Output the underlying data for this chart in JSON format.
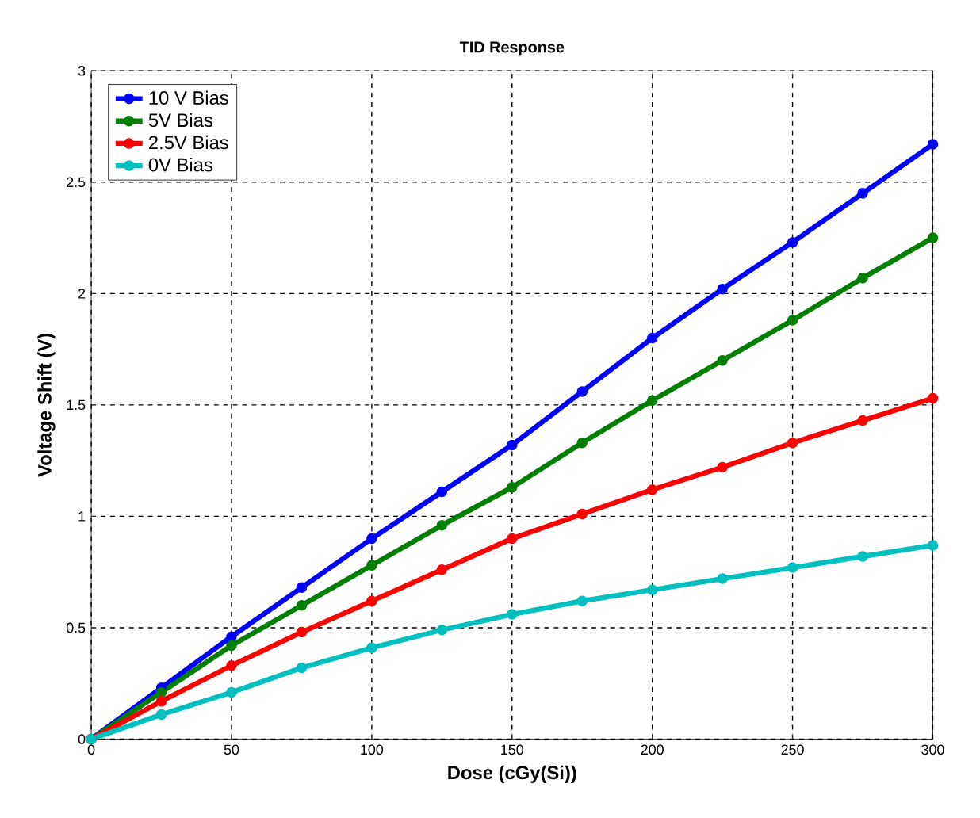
{
  "chart_data": {
    "type": "line",
    "title": "TID Response",
    "xlabel": "Dose (cGy(Si))",
    "ylabel": "Voltage Shift (V)",
    "x": [
      0,
      25,
      50,
      75,
      100,
      125,
      150,
      175,
      200,
      225,
      250,
      275,
      300
    ],
    "series": [
      {
        "name": "10 V Bias",
        "color": "#0000ff",
        "values": [
          0,
          0.23,
          0.46,
          0.68,
          0.9,
          1.11,
          1.32,
          1.56,
          1.8,
          2.02,
          2.23,
          2.45,
          2.67
        ]
      },
      {
        "name": "5V Bias",
        "color": "#007f00",
        "values": [
          0,
          0.21,
          0.42,
          0.6,
          0.78,
          0.96,
          1.13,
          1.33,
          1.52,
          1.7,
          1.88,
          2.07,
          2.25
        ]
      },
      {
        "name": "2.5V Bias",
        "color": "#ff0000",
        "values": [
          0,
          0.17,
          0.33,
          0.48,
          0.62,
          0.76,
          0.9,
          1.01,
          1.12,
          1.22,
          1.33,
          1.43,
          1.53
        ]
      },
      {
        "name": "0V Bias",
        "color": "#00bfbf",
        "values": [
          0,
          0.11,
          0.21,
          0.32,
          0.41,
          0.49,
          0.56,
          0.62,
          0.67,
          0.72,
          0.77,
          0.82,
          0.87
        ]
      }
    ],
    "xlim": [
      0,
      300
    ],
    "xticks": [
      0,
      50,
      100,
      150,
      200,
      250,
      300
    ],
    "ylim": [
      0,
      3
    ],
    "yticks": [
      0,
      0.5,
      1,
      1.5,
      2,
      2.5,
      3
    ],
    "grid": true,
    "legend": "top left",
    "marker": "circle",
    "line_style": "solid"
  }
}
